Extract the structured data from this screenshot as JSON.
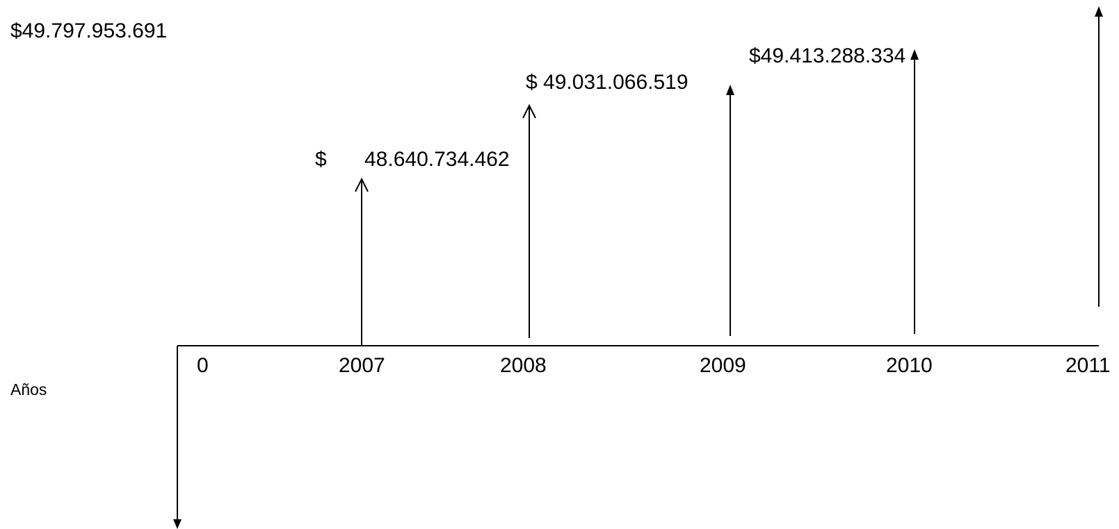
{
  "axis": {
    "x_label": "Años",
    "origin_label": "0",
    "years": [
      "2007",
      "2008",
      "2009",
      "2010",
      "2011"
    ]
  },
  "cash_flows": [
    {
      "year": "2007",
      "amount_label_prefix": "$",
      "amount_label_value": "48.640.734.462",
      "value": 48640734462
    },
    {
      "year": "2008",
      "amount_label": "$ 49.031.066.519",
      "value": 49031066519
    },
    {
      "year": "2009",
      "amount_label": "$49.413.288.334",
      "value": 49413288334
    },
    {
      "year": "2010",
      "amount_label": "",
      "value": null
    },
    {
      "year": "2011",
      "amount_label": "$49.797.953.691",
      "value": 49797953691
    }
  ],
  "colors": {
    "line": "#000000",
    "background": "#ffffff"
  }
}
